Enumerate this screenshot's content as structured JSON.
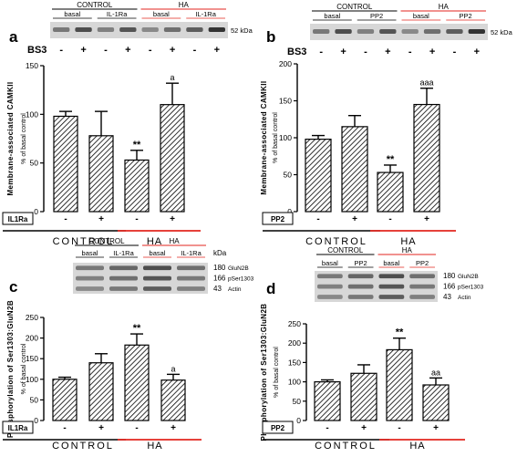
{
  "colors": {
    "black": "#000000",
    "red": "#e3261f",
    "blot_band": "#2a2a2a"
  },
  "chart_data": [
    {
      "panel": "a",
      "type": "bar",
      "ylabel": [
        "Membrane-associated CAMKII",
        "% of basal control"
      ],
      "ylim": [
        0,
        150
      ],
      "yticks": [
        "0",
        "50",
        "100",
        "150"
      ],
      "treatment_label": "IL1Ra",
      "signs": [
        "-",
        "+",
        "-",
        "+"
      ],
      "groups": [
        "CONTROL",
        "HA"
      ],
      "values": [
        98,
        78,
        53,
        110
      ],
      "errors": [
        5,
        25,
        10,
        22
      ],
      "annotations": [
        "",
        "",
        "**",
        "a"
      ],
      "blot": {
        "groups": [
          "CONTROL",
          "HA"
        ],
        "conditions": [
          "basal",
          "IL-1Ra",
          "basal",
          "IL-1Ra"
        ],
        "crosslinker": "BS3",
        "bs3_signs": [
          "-",
          "+",
          "-",
          "+",
          "-",
          "+",
          "-",
          "+"
        ],
        "size_label": "52 kDa"
      }
    },
    {
      "panel": "b",
      "type": "bar",
      "ylabel": [
        "Membrane-associated CAMKII",
        "% of basal control"
      ],
      "ylim": [
        0,
        200
      ],
      "yticks": [
        "0",
        "50",
        "100",
        "150",
        "200"
      ],
      "treatment_label": "PP2",
      "signs": [
        "-",
        "+",
        "-",
        "+"
      ],
      "groups": [
        "CONTROL",
        "HA"
      ],
      "values": [
        98,
        115,
        53,
        145
      ],
      "errors": [
        5,
        15,
        10,
        22
      ],
      "annotations": [
        "",
        "",
        "**",
        "aaa"
      ],
      "blot": {
        "groups": [
          "CONTROL",
          "HA"
        ],
        "conditions": [
          "basal",
          "PP2",
          "basal",
          "PP2"
        ],
        "crosslinker": "BS3",
        "bs3_signs": [
          "-",
          "+",
          "-",
          "+",
          "-",
          "+",
          "-",
          "+"
        ],
        "size_label": "52 kDa"
      }
    },
    {
      "panel": "c",
      "type": "bar",
      "ylabel": [
        "Phosphorylation of Ser1303:GluN2B",
        "% of basal control"
      ],
      "ylim": [
        0,
        250
      ],
      "yticks": [
        "0",
        "50",
        "100",
        "150",
        "200",
        "250"
      ],
      "treatment_label": "IL1Ra",
      "signs": [
        "-",
        "+",
        "-",
        "+"
      ],
      "groups": [
        "CONTROL",
        "HA"
      ],
      "values": [
        100,
        140,
        183,
        98
      ],
      "errors": [
        5,
        22,
        27,
        14
      ],
      "annotations": [
        "",
        "",
        "**",
        "a"
      ],
      "blot": {
        "groups": [
          "CONTROL",
          "HA"
        ],
        "conditions": [
          "basal",
          "IL-1Ra",
          "basal",
          "IL-1Ra"
        ],
        "kda_label": "kDa",
        "bands": [
          {
            "size": "180",
            "name": "GluN2B"
          },
          {
            "size": "166",
            "name": "pSer1303"
          },
          {
            "size": "43",
            "name": "Actin"
          }
        ]
      }
    },
    {
      "panel": "d",
      "type": "bar",
      "ylabel": [
        "Phosphorylation of Ser1303:GluN2B",
        "% of basal control"
      ],
      "ylim": [
        0,
        250
      ],
      "yticks": [
        "0",
        "50",
        "100",
        "150",
        "200",
        "250"
      ],
      "treatment_label": "PP2",
      "signs": [
        "-",
        "+",
        "-",
        "+"
      ],
      "groups": [
        "CONTROL",
        "HA"
      ],
      "values": [
        100,
        122,
        183,
        92
      ],
      "errors": [
        5,
        22,
        30,
        18
      ],
      "annotations": [
        "",
        "",
        "**",
        "aa"
      ],
      "blot": {
        "groups": [
          "CONTROL",
          "HA"
        ],
        "conditions": [
          "basal",
          "PP2",
          "basal",
          "PP2"
        ],
        "bands": [
          {
            "size": "180",
            "name": "GluN2B"
          },
          {
            "size": "166",
            "name": "pSer1303"
          },
          {
            "size": "43",
            "name": "Actin"
          }
        ]
      }
    }
  ]
}
